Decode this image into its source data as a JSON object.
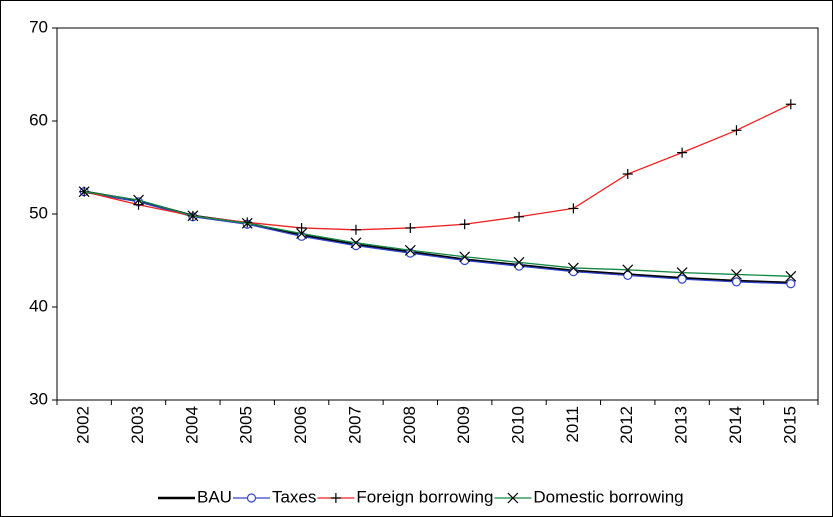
{
  "chart_data": {
    "type": "line",
    "categories": [
      "2002",
      "2003",
      "2004",
      "2005",
      "2006",
      "2007",
      "2008",
      "2009",
      "2010",
      "2011",
      "2012",
      "2013",
      "2014",
      "2015"
    ],
    "series": [
      {
        "name": "BAU",
        "color": "#000000",
        "marker": "none",
        "values": [
          52.4,
          51.4,
          49.8,
          49.0,
          47.7,
          46.7,
          45.9,
          45.1,
          44.5,
          43.9,
          43.5,
          43.1,
          42.8,
          42.6
        ]
      },
      {
        "name": "Taxes",
        "color": "#3344cc",
        "marker": "circle",
        "values": [
          52.4,
          51.3,
          49.7,
          48.9,
          47.6,
          46.6,
          45.8,
          45.0,
          44.4,
          43.8,
          43.4,
          43.0,
          42.7,
          42.5
        ]
      },
      {
        "name": "Foreign borrowing",
        "color": "#ee2222",
        "marker": "plus",
        "values": [
          52.4,
          51.0,
          49.8,
          49.1,
          48.5,
          48.3,
          48.5,
          48.9,
          49.7,
          50.6,
          54.3,
          56.6,
          59.0,
          61.8
        ]
      },
      {
        "name": "Domestic borrowing",
        "color": "#118844",
        "marker": "cross",
        "values": [
          52.4,
          51.5,
          49.8,
          49.0,
          47.9,
          46.9,
          46.1,
          45.4,
          44.8,
          44.2,
          44.0,
          43.7,
          43.5,
          43.3
        ]
      }
    ],
    "ylim": [
      30,
      70
    ],
    "yticks": [
      30,
      40,
      50,
      60,
      70
    ],
    "legend": "bottom"
  }
}
